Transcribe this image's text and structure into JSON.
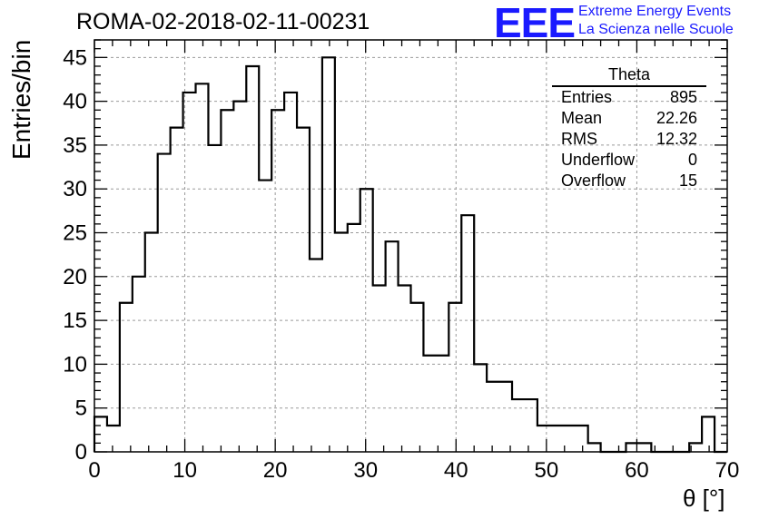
{
  "header": {
    "title": "ROMA-02-2018-02-11-00231",
    "logo_text": "EEE",
    "logo_line1": "Extreme Energy Events",
    "logo_line2": "La Scienza nelle Scuole"
  },
  "stats": {
    "title": "Theta",
    "rows": [
      {
        "label": "Entries",
        "value": "895"
      },
      {
        "label": "Mean",
        "value": "22.26"
      },
      {
        "label": "RMS",
        "value": "12.32"
      },
      {
        "label": "Underflow",
        "value": "0"
      },
      {
        "label": "Overflow",
        "value": "15"
      }
    ]
  },
  "chart_data": {
    "type": "bar",
    "histogram": true,
    "xlabel": "θ [°]",
    "ylabel": "Entries/bin",
    "xlim": [
      0,
      70
    ],
    "ylim": [
      0,
      47
    ],
    "bin_width": 1.4,
    "x_ticks": [
      0,
      10,
      20,
      30,
      40,
      50,
      60,
      70
    ],
    "y_ticks": [
      0,
      5,
      10,
      15,
      20,
      25,
      30,
      35,
      40,
      45
    ],
    "grid": true,
    "values": [
      4,
      3,
      17,
      20,
      25,
      34,
      37,
      41,
      42,
      35,
      39,
      40,
      44,
      31,
      39,
      41,
      37,
      22,
      45,
      25,
      26,
      30,
      19,
      24,
      19,
      17,
      11,
      11,
      17,
      27,
      10,
      8,
      8,
      6,
      6,
      3,
      3,
      3,
      3,
      1,
      0,
      0,
      1,
      1,
      0,
      0,
      0,
      1,
      4,
      0
    ],
    "colors": {
      "line": "#000000",
      "grid": "#9a9a9a",
      "logo": "#1a1aff"
    }
  }
}
